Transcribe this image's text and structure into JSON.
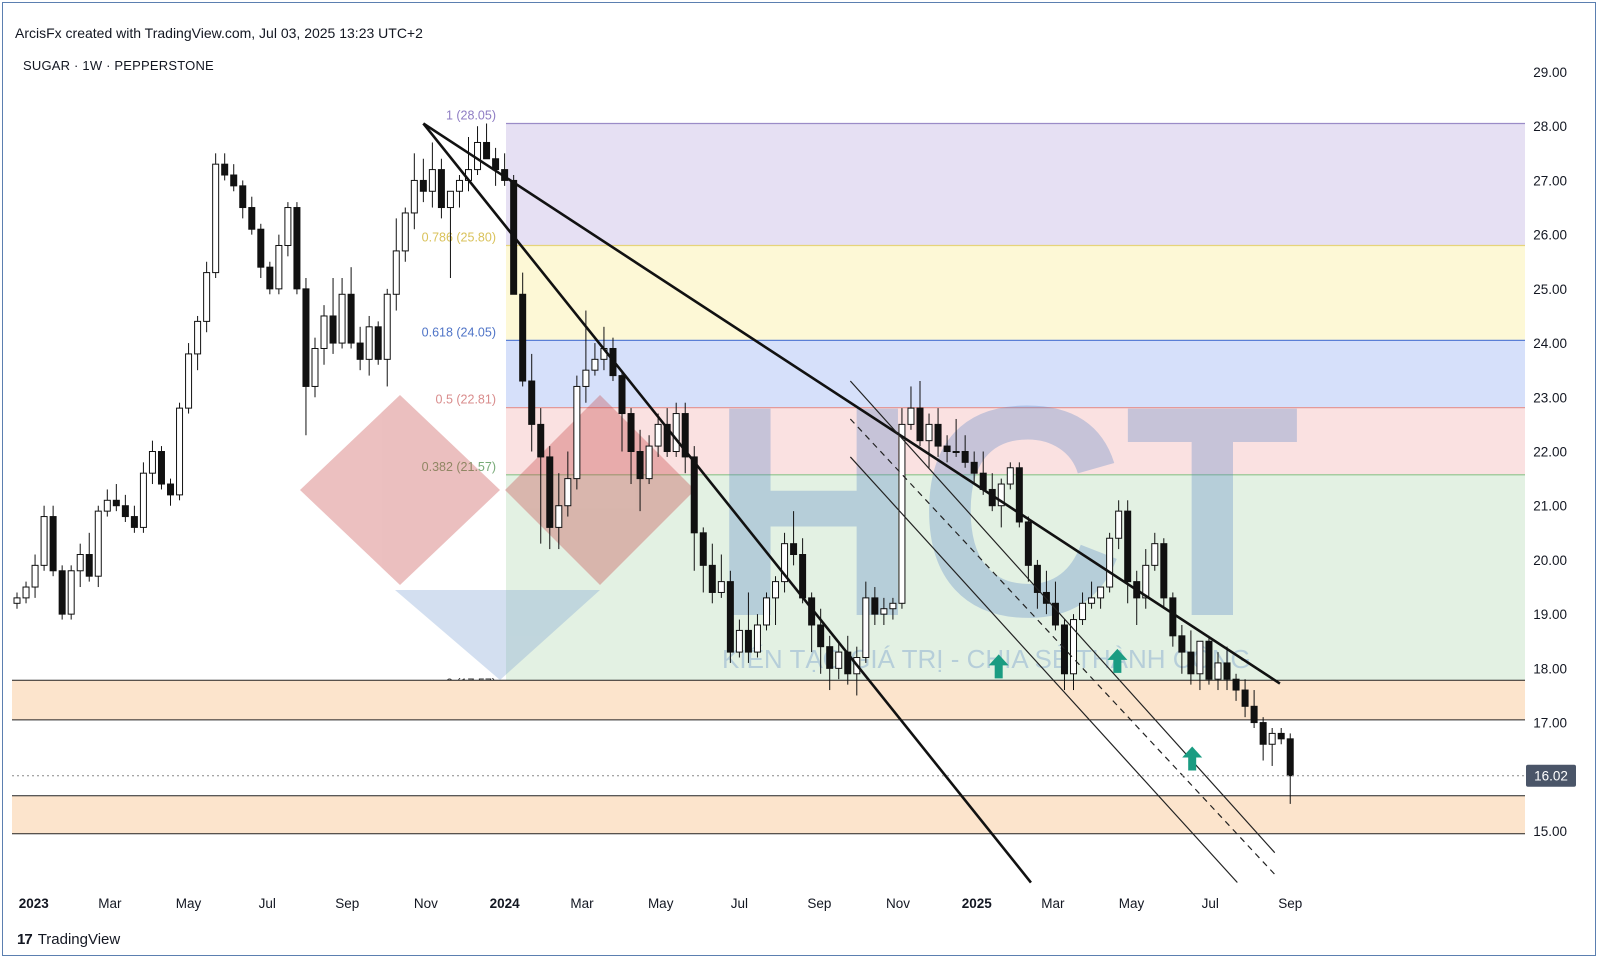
{
  "header_note": "ArcisFx created with TradingView.com, Jul 03, 2025 13:23 UTC+2",
  "symbol_label": "SUGAR · 1W · PEPPERSTONE",
  "brand": {
    "logo": "17",
    "name": "TradingView"
  },
  "watermark": {
    "letters": "HCT",
    "tagline": "KIẾN TẠO GIÁ TRỊ - CHIA SẺ THÀNH CÔNG"
  },
  "colors": {
    "up": "#ffffff",
    "down": "#111111",
    "arrow": "#1a9c82",
    "axis_text": "#131722"
  },
  "chart_data": {
    "type": "candlestick",
    "timeframe": "1W",
    "ylim": [
      14.0,
      29.5
    ],
    "y_ticks": [
      "29.00",
      "28.00",
      "27.00",
      "26.00",
      "25.00",
      "24.00",
      "23.00",
      "22.00",
      "21.00",
      "20.00",
      "19.00",
      "18.00",
      "17.00",
      "16.00",
      "15.00"
    ],
    "x_ticks": [
      {
        "label": "2023",
        "bold": true
      },
      {
        "label": "Mar",
        "bold": false
      },
      {
        "label": "May",
        "bold": false
      },
      {
        "label": "Jul",
        "bold": false
      },
      {
        "label": "Sep",
        "bold": false
      },
      {
        "label": "Nov",
        "bold": false
      },
      {
        "label": "2024",
        "bold": true
      },
      {
        "label": "Mar",
        "bold": false
      },
      {
        "label": "May",
        "bold": false
      },
      {
        "label": "Jul",
        "bold": false
      },
      {
        "label": "Sep",
        "bold": false
      },
      {
        "label": "Nov",
        "bold": false
      },
      {
        "label": "2025",
        "bold": true
      },
      {
        "label": "Mar",
        "bold": false
      },
      {
        "label": "May",
        "bold": false
      },
      {
        "label": "Jul",
        "bold": false
      },
      {
        "label": "Sep",
        "bold": false
      }
    ],
    "last_price": "16.02",
    "fibonacci": {
      "levels": [
        {
          "label": "1 (28.05)",
          "value": 28.05
        },
        {
          "label": "0.786 (25.80)",
          "value": 25.8
        },
        {
          "label": "0.618 (24.05)",
          "value": 24.05
        },
        {
          "label": "0.5 (22.81)",
          "value": 22.81
        },
        {
          "label": "0.382 (21.57)",
          "value": 21.57
        },
        {
          "label": "0 (17.57)",
          "value": 17.57
        }
      ],
      "zone_colors": [
        "#e6e0f3",
        "#fdf8d6",
        "#d6e0fa",
        "#fae1e1",
        "#e3f1e3"
      ]
    },
    "support_zones": [
      {
        "from": 17.05,
        "to": 17.78,
        "color": "#fce4cc"
      },
      {
        "from": 14.95,
        "to": 15.65,
        "color": "#fce4cc"
      }
    ],
    "candles": [
      [
        19.2,
        19.4,
        19.1,
        19.3
      ],
      [
        19.3,
        19.6,
        19.2,
        19.5
      ],
      [
        19.5,
        20.1,
        19.3,
        19.9
      ],
      [
        19.9,
        21.0,
        19.8,
        20.8
      ],
      [
        20.8,
        21.0,
        19.7,
        19.8
      ],
      [
        19.8,
        19.9,
        18.9,
        19.0
      ],
      [
        19.0,
        19.9,
        18.9,
        19.8
      ],
      [
        19.8,
        20.3,
        19.5,
        20.1
      ],
      [
        20.1,
        20.5,
        19.6,
        19.7
      ],
      [
        19.7,
        21.0,
        19.5,
        20.9
      ],
      [
        20.9,
        21.3,
        20.8,
        21.1
      ],
      [
        21.1,
        21.4,
        20.9,
        21.0
      ],
      [
        21.0,
        21.2,
        20.7,
        20.8
      ],
      [
        20.8,
        21.0,
        20.5,
        20.6
      ],
      [
        20.6,
        21.8,
        20.5,
        21.6
      ],
      [
        21.6,
        22.2,
        21.4,
        22.0
      ],
      [
        22.0,
        22.1,
        21.3,
        21.4
      ],
      [
        21.4,
        21.5,
        21.0,
        21.2
      ],
      [
        21.2,
        22.9,
        21.1,
        22.8
      ],
      [
        22.8,
        24.0,
        22.7,
        23.8
      ],
      [
        23.8,
        24.5,
        23.5,
        24.4
      ],
      [
        24.4,
        25.5,
        24.2,
        25.3
      ],
      [
        25.3,
        27.5,
        25.2,
        27.3
      ],
      [
        27.3,
        27.5,
        27.0,
        27.1
      ],
      [
        27.1,
        27.3,
        26.8,
        26.9
      ],
      [
        26.9,
        27.0,
        26.3,
        26.5
      ],
      [
        26.5,
        26.7,
        26.0,
        26.1
      ],
      [
        26.1,
        26.2,
        25.2,
        25.4
      ],
      [
        25.4,
        25.5,
        24.9,
        25.0
      ],
      [
        25.0,
        26.0,
        24.9,
        25.8
      ],
      [
        25.8,
        26.6,
        25.6,
        26.5
      ],
      [
        26.5,
        26.6,
        24.9,
        25.0
      ],
      [
        25.0,
        25.2,
        22.3,
        23.2
      ],
      [
        23.2,
        24.1,
        23.0,
        23.9
      ],
      [
        23.9,
        24.7,
        23.6,
        24.5
      ],
      [
        24.5,
        25.2,
        23.8,
        24.0
      ],
      [
        24.0,
        25.2,
        23.9,
        24.9
      ],
      [
        24.9,
        25.4,
        23.9,
        24.0
      ],
      [
        24.0,
        24.3,
        23.5,
        23.7
      ],
      [
        23.7,
        24.5,
        23.4,
        24.3
      ],
      [
        24.3,
        24.4,
        23.6,
        23.7
      ],
      [
        23.7,
        25.0,
        23.2,
        24.9
      ],
      [
        24.9,
        26.3,
        24.6,
        25.7
      ],
      [
        25.7,
        26.5,
        25.5,
        26.4
      ],
      [
        26.4,
        27.5,
        26.1,
        27.0
      ],
      [
        27.0,
        27.4,
        26.6,
        26.8
      ],
      [
        26.8,
        27.7,
        26.5,
        27.2
      ],
      [
        27.2,
        27.4,
        26.3,
        26.5
      ],
      [
        26.5,
        26.8,
        25.2,
        26.8
      ],
      [
        26.8,
        27.1,
        26.5,
        27.0
      ],
      [
        27.0,
        27.8,
        26.8,
        27.2
      ],
      [
        27.2,
        28.0,
        27.1,
        27.7
      ],
      [
        27.7,
        28.05,
        27.4,
        27.4
      ],
      [
        27.4,
        27.6,
        26.9,
        27.2
      ],
      [
        27.2,
        27.5,
        26.9,
        27.0
      ],
      [
        27.0,
        27.1,
        24.9,
        24.9
      ],
      [
        24.9,
        25.3,
        23.2,
        23.3
      ],
      [
        23.3,
        23.8,
        22.0,
        22.5
      ],
      [
        22.5,
        22.8,
        20.3,
        21.9
      ],
      [
        21.9,
        22.1,
        20.2,
        20.6
      ],
      [
        20.6,
        21.6,
        20.2,
        21.0
      ],
      [
        21.0,
        22.0,
        20.8,
        21.5
      ],
      [
        21.5,
        23.4,
        21.3,
        23.2
      ],
      [
        23.2,
        24.6,
        22.9,
        23.5
      ],
      [
        23.5,
        24.0,
        23.4,
        23.7
      ],
      [
        23.7,
        24.3,
        23.5,
        23.9
      ],
      [
        23.9,
        24.1,
        23.3,
        23.4
      ],
      [
        23.4,
        23.5,
        22.0,
        22.7
      ],
      [
        22.7,
        22.8,
        21.4,
        22.0
      ],
      [
        22.0,
        22.4,
        20.9,
        21.5
      ],
      [
        21.5,
        22.3,
        21.4,
        22.1
      ],
      [
        22.1,
        22.7,
        21.9,
        22.5
      ],
      [
        22.5,
        22.8,
        21.9,
        22.0
      ],
      [
        22.0,
        22.9,
        21.9,
        22.7
      ],
      [
        22.7,
        22.9,
        21.6,
        21.9
      ],
      [
        21.9,
        22.1,
        19.8,
        20.5
      ],
      [
        20.5,
        20.6,
        19.4,
        19.9
      ],
      [
        19.9,
        20.3,
        19.2,
        19.4
      ],
      [
        19.4,
        20.1,
        19.3,
        19.6
      ],
      [
        19.6,
        19.8,
        18.1,
        18.3
      ],
      [
        18.3,
        18.9,
        18.2,
        18.7
      ],
      [
        18.7,
        19.4,
        18.1,
        18.3
      ],
      [
        18.3,
        19.0,
        18.2,
        18.8
      ],
      [
        18.8,
        19.4,
        18.7,
        19.3
      ],
      [
        19.3,
        19.7,
        18.8,
        19.6
      ],
      [
        19.6,
        20.5,
        19.4,
        20.3
      ],
      [
        20.3,
        20.9,
        19.9,
        20.1
      ],
      [
        20.1,
        20.4,
        19.2,
        19.3
      ],
      [
        19.3,
        19.4,
        18.3,
        18.8
      ],
      [
        18.8,
        19.1,
        17.9,
        18.4
      ],
      [
        18.4,
        18.6,
        17.6,
        18.0
      ],
      [
        18.0,
        18.5,
        17.8,
        18.3
      ],
      [
        18.3,
        18.6,
        17.7,
        17.9
      ],
      [
        17.9,
        18.4,
        17.5,
        18.2
      ],
      [
        18.2,
        19.6,
        18.1,
        19.3
      ],
      [
        19.3,
        19.5,
        18.8,
        19.0
      ],
      [
        19.0,
        19.3,
        18.8,
        19.1
      ],
      [
        19.1,
        19.3,
        18.9,
        19.2
      ],
      [
        19.2,
        22.8,
        19.1,
        22.5
      ],
      [
        22.5,
        23.2,
        22.4,
        22.8
      ],
      [
        22.8,
        23.3,
        22.1,
        22.2
      ],
      [
        22.2,
        22.7,
        21.7,
        22.5
      ],
      [
        22.5,
        22.8,
        21.9,
        22.1
      ],
      [
        22.1,
        22.3,
        21.8,
        22.0
      ],
      [
        22.0,
        22.6,
        21.9,
        22.0
      ],
      [
        22.0,
        22.3,
        21.7,
        21.8
      ],
      [
        21.8,
        22.0,
        21.4,
        21.6
      ],
      [
        21.6,
        22.0,
        21.2,
        21.3
      ],
      [
        21.3,
        21.6,
        20.9,
        21.0
      ],
      [
        21.0,
        21.5,
        20.6,
        21.4
      ],
      [
        21.4,
        21.8,
        21.3,
        21.7
      ],
      [
        21.7,
        21.8,
        20.6,
        20.7
      ],
      [
        20.7,
        20.8,
        19.6,
        19.9
      ],
      [
        19.9,
        20.0,
        19.1,
        19.4
      ],
      [
        19.4,
        19.8,
        19.0,
        19.2
      ],
      [
        19.2,
        19.6,
        18.7,
        18.8
      ],
      [
        18.8,
        18.9,
        17.6,
        17.9
      ],
      [
        17.9,
        19.0,
        17.6,
        18.9
      ],
      [
        18.9,
        19.4,
        18.8,
        19.2
      ],
      [
        19.2,
        19.6,
        19.1,
        19.3
      ],
      [
        19.3,
        19.5,
        19.1,
        19.5
      ],
      [
        19.5,
        20.5,
        19.4,
        20.4
      ],
      [
        20.4,
        21.1,
        20.2,
        20.9
      ],
      [
        20.9,
        21.1,
        19.2,
        19.6
      ],
      [
        19.6,
        19.8,
        18.8,
        19.3
      ],
      [
        19.3,
        20.2,
        19.1,
        19.9
      ],
      [
        19.9,
        20.5,
        19.8,
        20.3
      ],
      [
        20.3,
        20.4,
        19.1,
        19.3
      ],
      [
        19.3,
        19.4,
        18.4,
        18.6
      ],
      [
        18.6,
        18.8,
        17.9,
        18.3
      ],
      [
        18.3,
        18.7,
        17.7,
        17.9
      ],
      [
        17.9,
        18.5,
        17.6,
        18.5
      ],
      [
        18.5,
        18.6,
        17.7,
        17.8
      ],
      [
        17.8,
        18.3,
        17.6,
        18.1
      ],
      [
        18.1,
        18.4,
        17.6,
        17.8
      ],
      [
        17.8,
        17.9,
        17.4,
        17.6
      ],
      [
        17.6,
        17.8,
        17.1,
        17.3
      ],
      [
        17.3,
        17.6,
        16.9,
        17.0
      ],
      [
        17.0,
        17.1,
        16.3,
        16.6
      ],
      [
        16.6,
        16.9,
        16.2,
        16.8
      ],
      [
        16.8,
        16.9,
        16.6,
        16.7
      ],
      [
        16.7,
        16.8,
        15.5,
        16.02
      ]
    ],
    "trend_lines": [
      {
        "from": [
          "2023-10-30",
          28.05
        ],
        "to": [
          "2025-08-24",
          17.72
        ]
      },
      {
        "from": [
          "2023-10-30",
          28.05
        ],
        "to": [
          "2025-02-12",
          14.05
        ]
      }
    ],
    "channel": {
      "upper": [
        [
          "2024-09-25",
          23.3
        ],
        [
          "2025-08-20",
          14.6
        ]
      ],
      "middle": [
        [
          "2024-09-25",
          22.6
        ],
        [
          "2025-08-20",
          14.2
        ]
      ],
      "lower": [
        [
          "2024-09-25",
          21.9
        ],
        [
          "2025-07-22",
          14.05
        ]
      ]
    },
    "markers": [
      {
        "type": "arrow-up",
        "at": [
          "2025-01-18",
          18.0
        ]
      },
      {
        "type": "arrow-up",
        "at": [
          "2025-04-20",
          18.1
        ]
      },
      {
        "type": "arrow-up",
        "at": [
          "2025-06-17",
          16.3
        ]
      }
    ]
  }
}
